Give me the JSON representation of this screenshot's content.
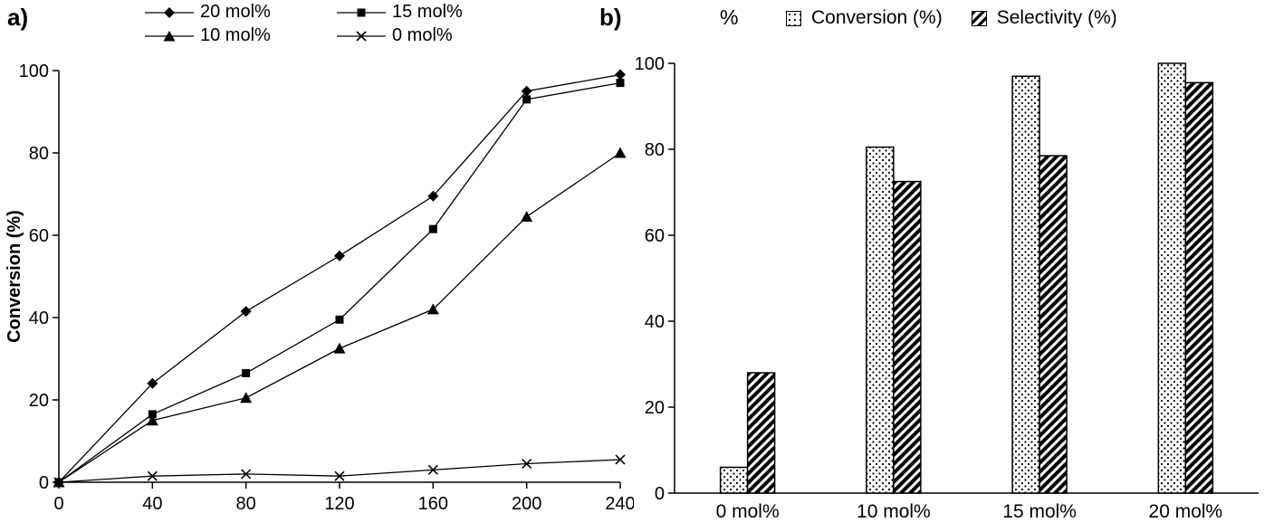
{
  "panels": {
    "a_label": "a)",
    "b_label": "b)"
  },
  "colors": {
    "foreground": "#000000",
    "background": "#ffffff"
  },
  "chart_data": [
    {
      "type": "line",
      "panel": "a",
      "title": "",
      "xlabel": "",
      "ylabel": "Conversion (%)",
      "xlim": [
        0,
        240
      ],
      "ylim": [
        0,
        100
      ],
      "xticks": [
        0,
        40,
        80,
        120,
        160,
        200,
        240
      ],
      "yticks": [
        0,
        20,
        40,
        60,
        80,
        100
      ],
      "grid": false,
      "legend_position": "top",
      "x": [
        0,
        40,
        80,
        120,
        160,
        200,
        240
      ],
      "series": [
        {
          "name": "20 mol%",
          "marker": "diamond",
          "color": "#000000",
          "values": [
            0,
            24,
            41.5,
            55,
            69.5,
            95,
            99
          ]
        },
        {
          "name": "15 mol%",
          "marker": "square",
          "color": "#000000",
          "values": [
            0,
            16.5,
            26.5,
            39.5,
            61.5,
            93,
            97
          ]
        },
        {
          "name": "10 mol%",
          "marker": "triangle",
          "color": "#000000",
          "values": [
            0,
            15,
            20.5,
            32.5,
            42,
            64.5,
            80
          ]
        },
        {
          "name": "0 mol%",
          "marker": "x",
          "color": "#000000",
          "values": [
            0,
            1.5,
            2,
            1.5,
            3,
            4.5,
            5.5
          ]
        }
      ]
    },
    {
      "type": "bar",
      "panel": "b",
      "title": "",
      "xlabel": "",
      "ylabel": "%",
      "ylim": [
        0,
        100
      ],
      "yticks": [
        0,
        20,
        40,
        60,
        80,
        100
      ],
      "grid": false,
      "legend_position": "top",
      "categories": [
        "0 mol%",
        "10 mol%",
        "15 mol%",
        "20 mol%"
      ],
      "series": [
        {
          "name": "Conversion (%)",
          "pattern": "dots",
          "color": "#000000",
          "values": [
            6,
            80.5,
            97,
            100
          ]
        },
        {
          "name": "Selectivity (%)",
          "pattern": "hatch",
          "color": "#000000",
          "values": [
            28,
            72.5,
            78.5,
            95.5
          ]
        }
      ]
    }
  ]
}
